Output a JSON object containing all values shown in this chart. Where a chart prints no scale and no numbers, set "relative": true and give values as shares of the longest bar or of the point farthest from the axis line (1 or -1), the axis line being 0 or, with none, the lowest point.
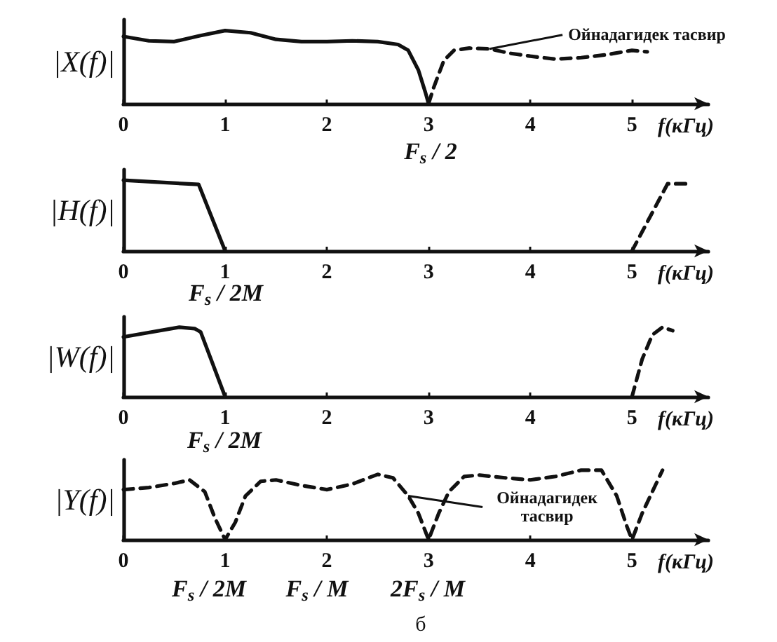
{
  "chart_data": [
    {
      "type": "line",
      "relative": true,
      "ylabel": "|X(f)|",
      "xlabel": "f(кГц)",
      "xlim": [
        0,
        5.75
      ],
      "xticks": [
        0,
        1,
        2,
        3,
        4,
        5
      ],
      "series": [
        {
          "color": "#111111",
          "line_style": "solid",
          "x": [
            0,
            0.25,
            0.5,
            0.75,
            1,
            1.25,
            1.5,
            1.75,
            2,
            2.25,
            2.5,
            2.7,
            2.8,
            2.9,
            2.97,
            3
          ],
          "values": [
            0.92,
            0.86,
            0.85,
            0.93,
            1,
            0.97,
            0.88,
            0.85,
            0.85,
            0.86,
            0.85,
            0.81,
            0.73,
            0.46,
            0.15,
            0
          ]
        },
        {
          "color": "#111111",
          "line_style": "dashed",
          "x": [
            3,
            3.05,
            3.15,
            3.25,
            3.4,
            3.6,
            3.8,
            4,
            4.25,
            4.5,
            4.75,
            5,
            5.15
          ],
          "values": [
            0,
            0.22,
            0.59,
            0.73,
            0.76,
            0.75,
            0.69,
            0.65,
            0.61,
            0.63,
            0.67,
            0.73,
            0.71
          ]
        }
      ],
      "annotations": [
        "F$_{s}$ / 2",
        {
          "text": "Ойнадагидек тасвир",
          "x": 3.6,
          "y": 0.75
        }
      ]
    },
    {
      "type": "line",
      "relative": true,
      "ylabel": "|H(f)|",
      "xlabel": "f(кГц)",
      "xlim": [
        0,
        5.75
      ],
      "xticks": [
        0,
        1,
        2,
        3,
        4,
        5
      ],
      "series": [
        {
          "color": "#111111",
          "line_style": "solid",
          "x": [
            0,
            0.74,
            1
          ],
          "values": [
            1,
            0.94,
            0
          ]
        },
        {
          "color": "#111111",
          "line_style": "dashed",
          "x": [
            5,
            5.35,
            5.55
          ],
          "values": [
            0,
            0.95,
            0.95
          ]
        }
      ],
      "annotations": [
        "F$_{s}$ / 2M"
      ]
    },
    {
      "type": "line",
      "relative": true,
      "ylabel": "|W(f)|",
      "xlabel": "f(кГц)",
      "xlim": [
        0,
        5.75
      ],
      "xticks": [
        0,
        1,
        2,
        3,
        4,
        5
      ],
      "series": [
        {
          "color": "#111111",
          "line_style": "solid",
          "x": [
            0,
            0.55,
            0.7,
            0.76,
            1
          ],
          "values": [
            0.86,
            1,
            0.98,
            0.93,
            0
          ]
        },
        {
          "color": "#111111",
          "line_style": "dashed",
          "x": [
            5,
            5.1,
            5.2,
            5.3,
            5.4
          ],
          "values": [
            0,
            0.54,
            0.89,
            1,
            0.95
          ]
        }
      ],
      "annotations": [
        "F$_{s}$ / 2M"
      ]
    },
    {
      "type": "line",
      "relative": true,
      "ylabel": "|Y(f)|",
      "xlabel": "f(кГц)",
      "xlim": [
        0,
        5.75
      ],
      "xticks": [
        0,
        1,
        2,
        3,
        4,
        5
      ],
      "series": [
        {
          "color": "#111111",
          "line_style": "dashed",
          "x": [
            0,
            0.25,
            0.5,
            0.65,
            0.8,
            0.9,
            1,
            1.1,
            1.2,
            1.35,
            1.5,
            1.75,
            2,
            2.25,
            2.5,
            2.65,
            2.8,
            2.9,
            3,
            3.1,
            3.2,
            3.35,
            3.5,
            3.75,
            4,
            4.25,
            4.5,
            4.7,
            4.85,
            4.95,
            5,
            5.1,
            5.2,
            5.3
          ],
          "values": [
            0.72,
            0.75,
            0.81,
            0.86,
            0.69,
            0.31,
            0,
            0.25,
            0.63,
            0.84,
            0.86,
            0.78,
            0.72,
            0.8,
            0.94,
            0.89,
            0.63,
            0.38,
            0,
            0.38,
            0.69,
            0.91,
            0.93,
            0.89,
            0.86,
            0.91,
            1,
            1,
            0.63,
            0.19,
            0,
            0.38,
            0.69,
            1
          ]
        }
      ],
      "annotations": [
        "F$_{s}$ / 2M",
        "F$_{s}$ / M",
        "2F$_{s}$ / M",
        {
          "text": "Ойнадагидек тасвир",
          "x": 2.8,
          "y": 0.63
        },
        "б"
      ]
    }
  ]
}
